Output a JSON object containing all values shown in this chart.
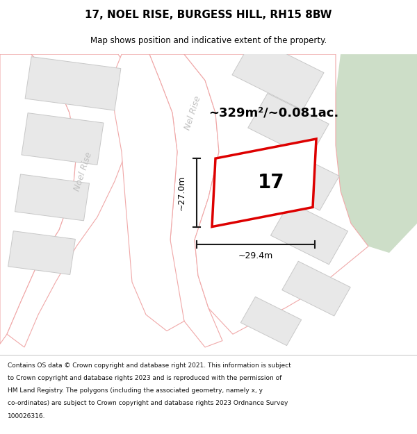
{
  "title": "17, NOEL RISE, BURGESS HILL, RH15 8BW",
  "subtitle": "Map shows position and indicative extent of the property.",
  "footer_lines": [
    "Contains OS data © Crown copyright and database right 2021. This information is subject",
    "to Crown copyright and database rights 2023 and is reproduced with the permission of",
    "HM Land Registry. The polygons (including the associated geometry, namely x, y",
    "co-ordinates) are subject to Crown copyright and database rights 2023 Ordnance Survey",
    "100026316."
  ],
  "map_bg": "#f2f0ef",
  "green_color": "#cddec8",
  "road_fill": "#ffffff",
  "road_stroke": "#f0a8a8",
  "building_fill": "#e8e8e8",
  "building_stroke": "#c8c8c8",
  "highlight_stroke": "#dd0000",
  "highlight_fill": "#ffffff",
  "dim_color": "#1a1a1a",
  "label_color": "#c0c0c0",
  "area_label": "~329m²/~0.081ac.",
  "num_label": "17",
  "w_label": "~29.4m",
  "h_label": "~27.0m",
  "road_label_noel": "Noel Rise",
  "road_label_nel": "Nel Rise",
  "title_fontsize": 11,
  "subtitle_fontsize": 8.5,
  "footer_fontsize": 6.5
}
